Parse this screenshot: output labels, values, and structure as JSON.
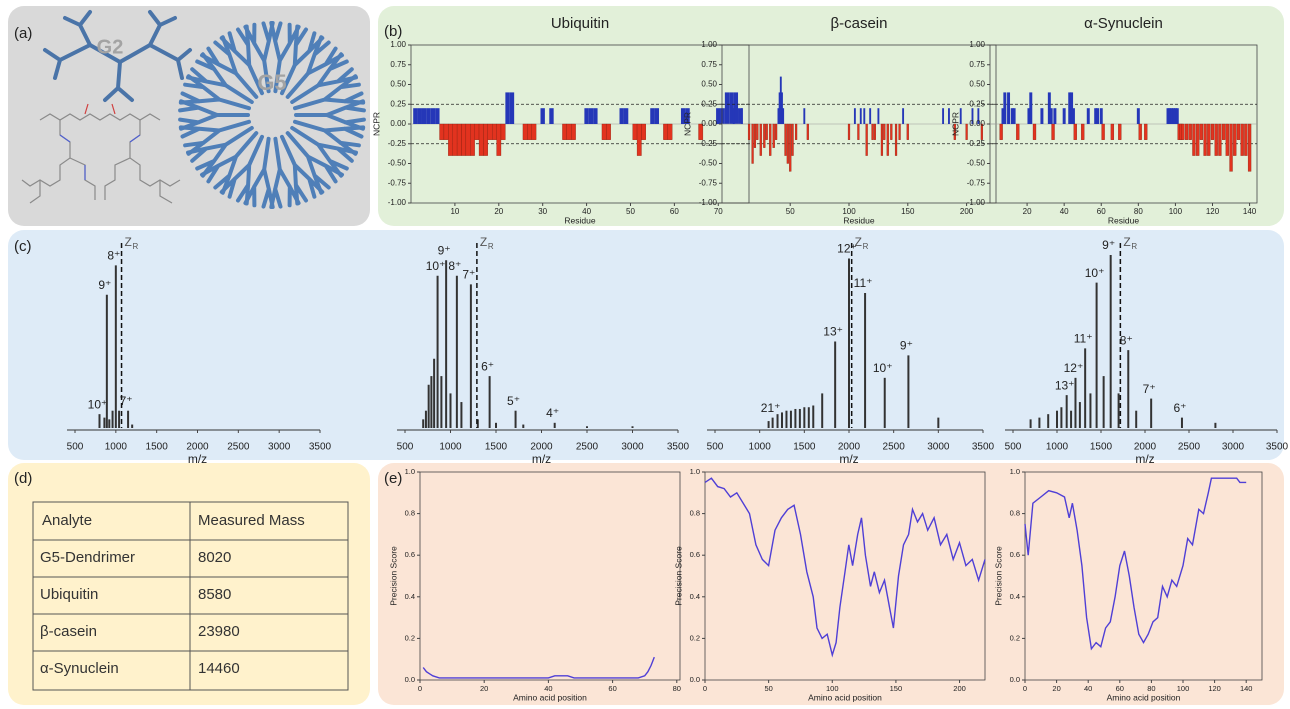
{
  "panels": {
    "a": "(a)",
    "b": "(b)",
    "c": "(c)",
    "d": "(d)",
    "e": "(e)"
  },
  "diagram": {
    "g2": "G2",
    "g5": "G5"
  },
  "table": {
    "header": [
      "Analyte",
      "Measured Mass"
    ],
    "rows": [
      [
        "G5-Dendrimer",
        8020
      ],
      [
        "Ubiquitin",
        8580
      ],
      [
        "β-casein",
        23980
      ],
      [
        "α-Synuclein",
        14460
      ]
    ]
  },
  "chart_data": [
    {
      "type": "bar",
      "title": "Ubiquitin",
      "xlabel": "Residue",
      "ylabel": "NCPR",
      "colors": {
        "positive": "#2537b8",
        "negative": "#e2331f"
      },
      "x": [
        1,
        2,
        3,
        4,
        5,
        6,
        7,
        8,
        9,
        10,
        11,
        12,
        13,
        14,
        15,
        16,
        17,
        18,
        19,
        20,
        21,
        22,
        23,
        26,
        27,
        28,
        30,
        32,
        35,
        36,
        37,
        40,
        41,
        42,
        44,
        45,
        48,
        49,
        51,
        52,
        53,
        55,
        56,
        58,
        59,
        62,
        63,
        66,
        70,
        71,
        72,
        73,
        74,
        75
      ],
      "values": [
        0.2,
        0.2,
        0.2,
        0.2,
        0.2,
        0.2,
        -0.2,
        -0.2,
        -0.4,
        -0.4,
        -0.4,
        -0.4,
        -0.4,
        -0.4,
        -0.2,
        -0.4,
        -0.4,
        -0.2,
        -0.2,
        -0.4,
        -0.2,
        0.4,
        0.4,
        -0.2,
        -0.2,
        -0.2,
        0.2,
        0.2,
        -0.2,
        -0.2,
        -0.2,
        0.2,
        0.2,
        0.2,
        -0.2,
        -0.2,
        0.2,
        0.2,
        -0.2,
        -0.4,
        -0.2,
        0.2,
        0.2,
        -0.2,
        -0.2,
        0.2,
        0.2,
        -0.2,
        0.2,
        0.2,
        0.4,
        0.4,
        0.4,
        0.2
      ],
      "hlines": [
        0.25,
        -0.25
      ],
      "xlim": [
        0,
        77
      ],
      "xticks": [
        10,
        20,
        30,
        40,
        50,
        60,
        70
      ],
      "ylim": [
        -1,
        1
      ],
      "yticks": [
        {
          "value": -1,
          "label": "-1.00"
        },
        {
          "value": -0.75,
          "label": "-0.75"
        },
        {
          "value": -0.5,
          "label": "-0.50"
        },
        {
          "value": -0.25,
          "label": "-0.25"
        },
        {
          "value": 0,
          "label": "0.00"
        },
        {
          "value": 0.25,
          "label": "0.25"
        },
        {
          "value": 0.5,
          "label": "0.50"
        },
        {
          "value": 0.75,
          "label": "0.75"
        },
        {
          "value": 1,
          "label": "1.00"
        }
      ]
    },
    {
      "type": "bar",
      "title": "β-casein",
      "xlabel": "Residue",
      "ylabel": "NCPR",
      "colors": {
        "positive": "#2537b8",
        "negative": "#e2331f"
      },
      "x": [
        2,
        9,
        15,
        18,
        20,
        22,
        25,
        28,
        30,
        33,
        36,
        38,
        40,
        41,
        42,
        43,
        44,
        46,
        48,
        50,
        52,
        55,
        62,
        65,
        100,
        105,
        108,
        110,
        113,
        115,
        118,
        120,
        122,
        125,
        128,
        130,
        133,
        136,
        140,
        143,
        146,
        150,
        180,
        185,
        190,
        195,
        200,
        205,
        210,
        213
      ],
      "values": [
        0.2,
        0.2,
        -0.2,
        -0.5,
        -0.3,
        -0.2,
        -0.4,
        -0.3,
        -0.2,
        -0.4,
        -0.3,
        -0.2,
        0.2,
        0.4,
        0.6,
        0.4,
        0.2,
        -0.4,
        -0.5,
        -0.6,
        -0.4,
        -0.2,
        0.2,
        -0.2,
        -0.2,
        0.2,
        -0.2,
        0.2,
        0.2,
        -0.4,
        0.2,
        -0.2,
        -0.2,
        0.2,
        -0.4,
        -0.2,
        -0.4,
        -0.2,
        -0.4,
        -0.2,
        0.2,
        -0.2,
        0.2,
        0.2,
        -0.2,
        0.2,
        -0.2,
        0.2,
        0.2,
        -0.2
      ],
      "hlines": [
        0.25,
        -0.25
      ],
      "xlim": [
        -8,
        225
      ],
      "xticks": [
        50,
        100,
        150,
        200
      ],
      "ylim": [
        -1,
        1
      ],
      "yticks": [
        {
          "value": -1,
          "label": "-1.00"
        },
        {
          "value": -0.75,
          "label": "-0.75"
        },
        {
          "value": -0.5,
          "label": "-0.50"
        },
        {
          "value": -0.25,
          "label": "-0.25"
        },
        {
          "value": 0,
          "label": "0.00"
        },
        {
          "value": 0.25,
          "label": "0.25"
        },
        {
          "value": 0.5,
          "label": "0.50"
        },
        {
          "value": 0.75,
          "label": "0.75"
        },
        {
          "value": 1,
          "label": "1.00"
        }
      ]
    },
    {
      "type": "bar",
      "title": "α-Synuclein",
      "xlabel": "Residue",
      "ylabel": "NCPR",
      "colors": {
        "positive": "#2537b8",
        "negative": "#e2331f"
      },
      "x": [
        6,
        7,
        8,
        10,
        12,
        13,
        15,
        21,
        22,
        24,
        28,
        32,
        33,
        34,
        35,
        40,
        43,
        44,
        45,
        46,
        50,
        53,
        57,
        58,
        60,
        61,
        66,
        70,
        80,
        81,
        84,
        96,
        97,
        98,
        99,
        100,
        101,
        102,
        103,
        104,
        106,
        108,
        110,
        112,
        114,
        116,
        118,
        120,
        122,
        124,
        126,
        128,
        130,
        132,
        134,
        136,
        138,
        140
      ],
      "values": [
        -0.2,
        0.2,
        0.4,
        0.4,
        0.2,
        0.2,
        -0.2,
        0.2,
        0.4,
        -0.2,
        0.2,
        0.4,
        0.2,
        -0.2,
        0.2,
        0.2,
        0.4,
        0.4,
        0.2,
        -0.2,
        -0.2,
        0.2,
        0.2,
        0.2,
        0.2,
        -0.2,
        -0.2,
        -0.2,
        0.2,
        -0.2,
        -0.2,
        0.2,
        0.2,
        0.2,
        0.2,
        0.2,
        0.2,
        -0.2,
        -0.2,
        -0.2,
        -0.2,
        -0.2,
        -0.4,
        -0.4,
        -0.2,
        -0.4,
        -0.4,
        -0.2,
        -0.4,
        -0.4,
        -0.2,
        -0.4,
        -0.6,
        -0.4,
        -0.2,
        -0.4,
        -0.4,
        -0.6
      ],
      "hlines": [
        0.25,
        -0.25
      ],
      "xlim": [
        0,
        144
      ],
      "xticks": [
        20,
        40,
        60,
        80,
        100,
        120,
        140
      ],
      "ylim": [
        -1,
        1
      ],
      "yticks": [
        {
          "value": -1,
          "label": "-1.00"
        },
        {
          "value": -0.75,
          "label": "-0.75"
        },
        {
          "value": -0.5,
          "label": "-0.50"
        },
        {
          "value": -0.25,
          "label": "-0.25"
        },
        {
          "value": 0,
          "label": "0.00"
        },
        {
          "value": 0.25,
          "label": "0.25"
        },
        {
          "value": 0.5,
          "label": "0.50"
        },
        {
          "value": 0.75,
          "label": "0.75"
        },
        {
          "value": 1,
          "label": "1.00"
        }
      ]
    },
    {
      "type": "stick",
      "xlabel": "m/z",
      "color": "#333333",
      "x": [
        800,
        860,
        890,
        920,
        960,
        1000,
        1040,
        1150,
        1200
      ],
      "values": [
        0.08,
        0.06,
        0.77,
        0.05,
        0.1,
        0.94,
        0.1,
        0.1,
        0.02
      ],
      "labels": [
        "10⁺",
        null,
        "9⁺",
        null,
        null,
        "8⁺",
        null,
        "7⁺",
        null
      ],
      "zr": {
        "text": "Z",
        "sub": "R",
        "x": 1070
      },
      "xlim": [
        500,
        3500
      ],
      "xticks": [
        500,
        1000,
        1500,
        2000,
        2500,
        3000,
        3500
      ],
      "ylim": [
        0,
        1
      ]
    },
    {
      "type": "stick",
      "xlabel": "m/z",
      "color": "#333333",
      "x": [
        700,
        730,
        760,
        790,
        820,
        858,
        900,
        952,
        1000,
        1070,
        1120,
        1224,
        1300,
        1430,
        1500,
        1715,
        1800,
        2145,
        2500,
        3000
      ],
      "values": [
        0.05,
        0.1,
        0.25,
        0.3,
        0.4,
        0.88,
        0.3,
        0.97,
        0.2,
        0.88,
        0.15,
        0.83,
        0.05,
        0.3,
        0.03,
        0.1,
        0.02,
        0.03,
        0.01,
        0.01
      ],
      "labels": [
        null,
        null,
        null,
        null,
        null,
        "10⁺",
        null,
        "9⁺",
        null,
        "8⁺",
        null,
        "7⁺",
        null,
        "6⁺",
        null,
        "5⁺",
        null,
        "4⁺",
        null,
        null
      ],
      "zr": {
        "text": "Z",
        "sub": "R",
        "x": 1290
      },
      "xlim": [
        500,
        3500
      ],
      "xticks": [
        500,
        1000,
        1500,
        2000,
        2500,
        3000,
        3500
      ],
      "ylim": [
        0,
        1
      ]
    },
    {
      "type": "stick",
      "xlabel": "m/z",
      "color": "#333333",
      "x": [
        1100,
        1145,
        1200,
        1250,
        1300,
        1350,
        1400,
        1450,
        1500,
        1550,
        1600,
        1700,
        1845,
        2000,
        2180,
        2400,
        2665,
        3000
      ],
      "values": [
        0.04,
        0.06,
        0.08,
        0.09,
        0.1,
        0.1,
        0.11,
        0.11,
        0.12,
        0.12,
        0.13,
        0.2,
        0.5,
        0.98,
        0.78,
        0.29,
        0.42,
        0.06
      ],
      "labels": [
        null,
        "21⁺",
        null,
        null,
        null,
        null,
        null,
        null,
        null,
        null,
        null,
        null,
        "13⁺",
        "12⁺",
        "11⁺",
        "10⁺",
        "9⁺",
        null
      ],
      "zr": {
        "text": "Z",
        "sub": "R",
        "x": 2030
      },
      "xlim": [
        500,
        3500
      ],
      "xticks": [
        500,
        1000,
        1500,
        2000,
        2500,
        3000,
        3500
      ],
      "ylim": [
        0,
        1
      ]
    },
    {
      "type": "stick",
      "xlabel": "m/z",
      "color": "#333333",
      "x": [
        700,
        800,
        900,
        1000,
        1050,
        1110,
        1160,
        1210,
        1260,
        1320,
        1380,
        1450,
        1530,
        1610,
        1700,
        1810,
        1900,
        2070,
        2420,
        2800
      ],
      "values": [
        0.05,
        0.06,
        0.08,
        0.1,
        0.12,
        0.19,
        0.1,
        0.29,
        0.15,
        0.46,
        0.2,
        0.84,
        0.3,
        1.0,
        0.2,
        0.45,
        0.1,
        0.17,
        0.06,
        0.03
      ],
      "labels": [
        null,
        null,
        null,
        null,
        null,
        "13⁺",
        null,
        "12⁺",
        null,
        "11⁺",
        null,
        "10⁺",
        null,
        "9⁺",
        null,
        "8⁺",
        null,
        "7⁺",
        "6⁺",
        null
      ],
      "zr": {
        "text": "Z",
        "sub": "R",
        "x": 1720
      },
      "xlim": [
        500,
        3500
      ],
      "xticks": [
        500,
        1000,
        1500,
        2000,
        2500,
        3000,
        3500
      ],
      "ylim": [
        0,
        1
      ]
    },
    {
      "type": "line",
      "xlabel": "Amino acid position",
      "ylabel": "Precision Score",
      "color": "#4f3fd6",
      "x": [
        1,
        2,
        3,
        4,
        6,
        10,
        20,
        30,
        40,
        42,
        44,
        46,
        48,
        60,
        68,
        70,
        71,
        72,
        73
      ],
      "values": [
        0.06,
        0.04,
        0.03,
        0.02,
        0.01,
        0.01,
        0.01,
        0.01,
        0.01,
        0.02,
        0.02,
        0.02,
        0.01,
        0.01,
        0.01,
        0.02,
        0.04,
        0.07,
        0.11
      ],
      "xlim": [
        0,
        81
      ],
      "xticks": [
        0,
        20,
        40,
        60,
        80
      ],
      "ylim": [
        0,
        1
      ],
      "yticks": [
        {
          "value": 0,
          "label": "0.0"
        },
        0.2,
        0.4,
        0.6,
        0.8,
        {
          "value": 1,
          "label": "1.0"
        }
      ]
    },
    {
      "type": "line",
      "xlabel": "Amino acid position",
      "ylabel": "Precision Score",
      "color": "#4f3fd6",
      "x": [
        0,
        5,
        10,
        15,
        20,
        25,
        30,
        35,
        40,
        45,
        50,
        55,
        60,
        65,
        70,
        75,
        80,
        85,
        88,
        92,
        96,
        100,
        103,
        106,
        110,
        113,
        116,
        120,
        123,
        126,
        130,
        133,
        137,
        141,
        145,
        148,
        152,
        156,
        160,
        163,
        167,
        171,
        175,
        180,
        185,
        190,
        195,
        200,
        205,
        210,
        215,
        220
      ],
      "values": [
        0.95,
        0.97,
        0.93,
        0.92,
        0.88,
        0.9,
        0.85,
        0.8,
        0.65,
        0.58,
        0.55,
        0.72,
        0.78,
        0.82,
        0.84,
        0.7,
        0.52,
        0.4,
        0.25,
        0.2,
        0.22,
        0.12,
        0.18,
        0.35,
        0.52,
        0.65,
        0.55,
        0.7,
        0.78,
        0.6,
        0.45,
        0.52,
        0.42,
        0.48,
        0.35,
        0.25,
        0.5,
        0.65,
        0.7,
        0.82,
        0.76,
        0.8,
        0.72,
        0.78,
        0.65,
        0.7,
        0.58,
        0.66,
        0.55,
        0.58,
        0.48,
        0.58
      ],
      "xlim": [
        0,
        220
      ],
      "xticks": [
        0,
        50,
        100,
        150,
        200
      ],
      "ylim": [
        0,
        1
      ],
      "yticks": [
        {
          "value": 0,
          "label": "0.0"
        },
        0.2,
        0.4,
        0.6,
        0.8,
        {
          "value": 1,
          "label": "1.0"
        }
      ]
    },
    {
      "type": "line",
      "xlabel": "Amino acid position",
      "ylabel": "Precision Score",
      "color": "#4f3fd6",
      "x": [
        0,
        2,
        5,
        10,
        15,
        20,
        25,
        28,
        30,
        33,
        36,
        39,
        42,
        45,
        48,
        51,
        54,
        57,
        60,
        63,
        66,
        69,
        72,
        75,
        78,
        81,
        84,
        87,
        90,
        93,
        96,
        100,
        103,
        106,
        110,
        113,
        116,
        118,
        122,
        126,
        130,
        134,
        136,
        140
      ],
      "values": [
        0.75,
        0.6,
        0.85,
        0.88,
        0.91,
        0.9,
        0.88,
        0.78,
        0.85,
        0.72,
        0.55,
        0.3,
        0.15,
        0.18,
        0.16,
        0.25,
        0.28,
        0.4,
        0.55,
        0.62,
        0.5,
        0.35,
        0.22,
        0.18,
        0.22,
        0.28,
        0.3,
        0.45,
        0.4,
        0.48,
        0.45,
        0.55,
        0.68,
        0.65,
        0.82,
        0.8,
        0.9,
        0.97,
        0.97,
        0.97,
        0.97,
        0.97,
        0.95,
        0.95
      ],
      "xlim": [
        0,
        150
      ],
      "xticks": [
        0,
        20,
        40,
        60,
        80,
        100,
        120,
        140
      ],
      "ylim": [
        0,
        1
      ],
      "yticks": [
        {
          "value": 0,
          "label": "0.0"
        },
        0.2,
        0.4,
        0.6,
        0.8,
        {
          "value": 1,
          "label": "1.0"
        }
      ]
    }
  ]
}
